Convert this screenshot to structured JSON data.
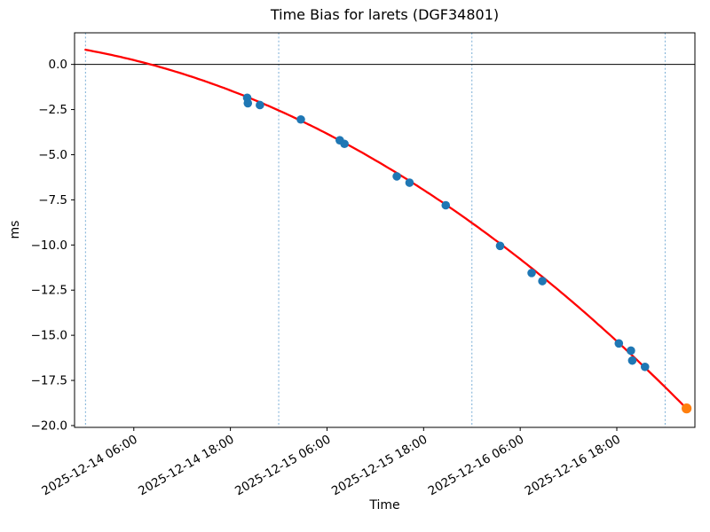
{
  "chart_data": {
    "type": "line",
    "title": "Time Bias for larets (DGF34801)",
    "xlabel": "Time",
    "ylabel": "ms",
    "epoch": "2025-12-14 00:00",
    "xlim_hours": [
      -1.36,
      75.7
    ],
    "ylim": [
      -20.1,
      1.75
    ],
    "x_ticks": [
      {
        "hours": 6,
        "label": "2025-12-14 06:00"
      },
      {
        "hours": 18,
        "label": "2025-12-14 18:00"
      },
      {
        "hours": 30,
        "label": "2025-12-15 06:00"
      },
      {
        "hours": 42,
        "label": "2025-12-15 18:00"
      },
      {
        "hours": 54,
        "label": "2025-12-16 06:00"
      },
      {
        "hours": 66,
        "label": "2025-12-16 18:00"
      }
    ],
    "y_ticks": [
      0,
      -2.5,
      -5,
      -7.5,
      -10,
      -12.5,
      -15,
      -17.5,
      -20
    ],
    "day_boundary_lines_hours": [
      0,
      24,
      48,
      72
    ],
    "zero_reference_line_ms": 0,
    "legend": "none",
    "series": [
      {
        "name": "quadratic-fit",
        "type": "line",
        "color": "#ff0000",
        "quadratic_coefficients_ms_per_hour": {
          "a": -0.00249,
          "b": -0.0802,
          "c": 0.81
        },
        "t_range_hours": [
          0,
          74.7
        ]
      },
      {
        "name": "observations",
        "type": "scatter",
        "color": "#1f77b4",
        "points": [
          {
            "time": "2025-12-14 20:05",
            "ms": -1.85
          },
          {
            "time": "2025-12-14 20:10",
            "ms": -2.15
          },
          {
            "time": "2025-12-14 21:40",
            "ms": -2.25
          },
          {
            "time": "2025-12-15 02:45",
            "ms": -3.05
          },
          {
            "time": "2025-12-15 07:35",
            "ms": -4.2
          },
          {
            "time": "2025-12-15 08:10",
            "ms": -4.4
          },
          {
            "time": "2025-12-15 14:40",
            "ms": -6.2
          },
          {
            "time": "2025-12-15 16:15",
            "ms": -6.55
          },
          {
            "time": "2025-12-15 20:45",
            "ms": -7.8
          },
          {
            "time": "2025-12-16 03:30",
            "ms": -10.05
          },
          {
            "time": "2025-12-16 07:25",
            "ms": -11.55
          },
          {
            "time": "2025-12-16 08:45",
            "ms": -12.0
          },
          {
            "time": "2025-12-16 18:15",
            "ms": -15.45
          },
          {
            "time": "2025-12-16 19:45",
            "ms": -15.85
          },
          {
            "time": "2025-12-16 19:55",
            "ms": -16.4
          },
          {
            "time": "2025-12-16 21:30",
            "ms": -16.75
          }
        ]
      },
      {
        "name": "latest-observation",
        "type": "scatter",
        "color": "#ff7f0e",
        "points": [
          {
            "time": "2025-12-17 02:40",
            "ms": -19.05
          }
        ]
      }
    ],
    "styles": {
      "day_line_color": "#79add6",
      "axis_color": "#000000",
      "zero_line_color": "#000000",
      "background": "#ffffff"
    }
  }
}
